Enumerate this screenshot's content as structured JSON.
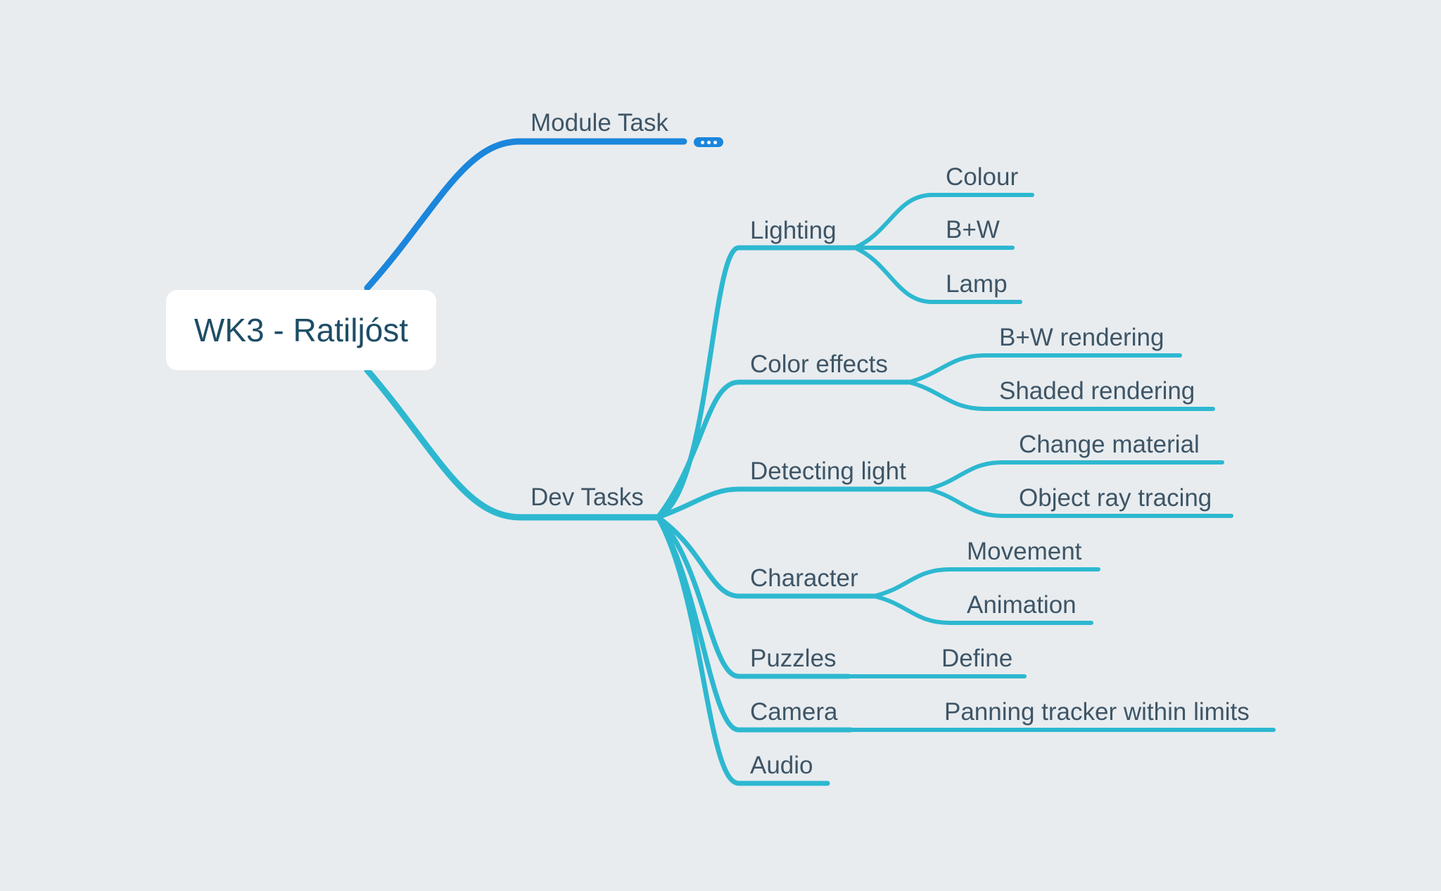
{
  "colors": {
    "background": "#E8ECEF",
    "root_box": "#FFFFFF",
    "root_text": "#1E4D66",
    "label_text": "#3E5566",
    "branch_blue": "#1B86DB",
    "branch_teal": "#2DB8D0"
  },
  "root": {
    "title": "WK3 - Ratiljóst"
  },
  "branches": {
    "module_task": {
      "label": "Module Task",
      "collapsed_indicator": "more-icon"
    },
    "dev_tasks": {
      "label": "Dev Tasks",
      "children": [
        {
          "label": "Lighting",
          "children": [
            {
              "label": "Colour"
            },
            {
              "label": "B+W"
            },
            {
              "label": "Lamp"
            }
          ]
        },
        {
          "label": "Color effects",
          "children": [
            {
              "label": "B+W rendering"
            },
            {
              "label": "Shaded rendering"
            }
          ]
        },
        {
          "label": "Detecting light",
          "children": [
            {
              "label": "Change material"
            },
            {
              "label": "Object ray tracing"
            }
          ]
        },
        {
          "label": "Character",
          "children": [
            {
              "label": "Movement"
            },
            {
              "label": "Animation"
            }
          ]
        },
        {
          "label": "Puzzles",
          "children": [
            {
              "label": "Define"
            }
          ]
        },
        {
          "label": "Camera",
          "children": [
            {
              "label": "Panning tracker within limits"
            }
          ]
        },
        {
          "label": "Audio",
          "children": []
        }
      ]
    }
  }
}
